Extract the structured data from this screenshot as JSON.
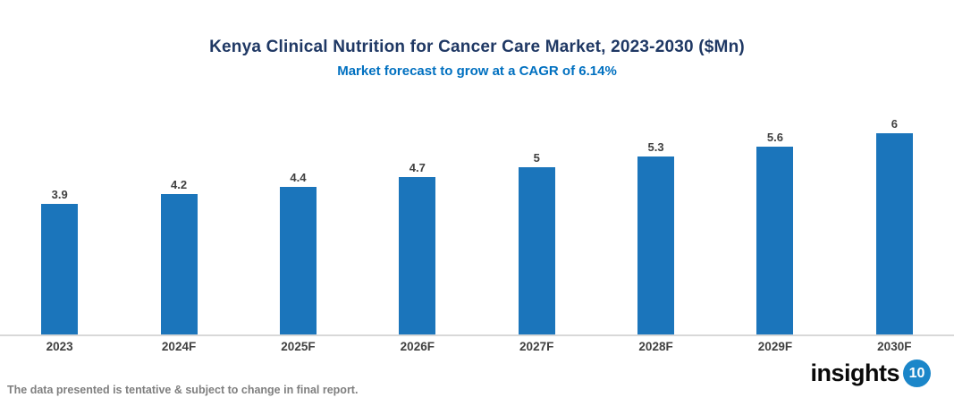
{
  "header": {
    "title": "Kenya Clinical Nutrition for Cancer Care Market, 2023-2030 ($Mn)",
    "subtitle": "Market forecast to grow at a CAGR of 6.14%"
  },
  "chart_data": {
    "type": "bar",
    "categories": [
      "2023",
      "2024F",
      "2025F",
      "2026F",
      "2027F",
      "2028F",
      "2029F",
      "2030F"
    ],
    "values": [
      3.9,
      4.2,
      4.4,
      4.7,
      5,
      5.3,
      5.6,
      6
    ],
    "title": "Kenya Clinical Nutrition for Cancer Care Market, 2023-2030 ($Mn)",
    "subtitle": "Market forecast to grow at a CAGR of 6.14%",
    "xlabel": "",
    "ylabel": "",
    "ylim": [
      0,
      6
    ],
    "grid": false,
    "legend": false,
    "data_labels": true,
    "bar_color": "#1B75BB"
  },
  "colors": {
    "title": "#1F3864",
    "subtitle": "#0070C0",
    "bar": "#1B75BB",
    "data_label": "#404040",
    "x_label": "#404040",
    "axis_line": "#D8D8D8",
    "footer_note": "#7F7F7F",
    "logo_badge_bg": "#1B86C9"
  },
  "footer": {
    "note": "The data presented is tentative & subject to change in final report.",
    "logo_text": "insights",
    "logo_badge": "10"
  }
}
